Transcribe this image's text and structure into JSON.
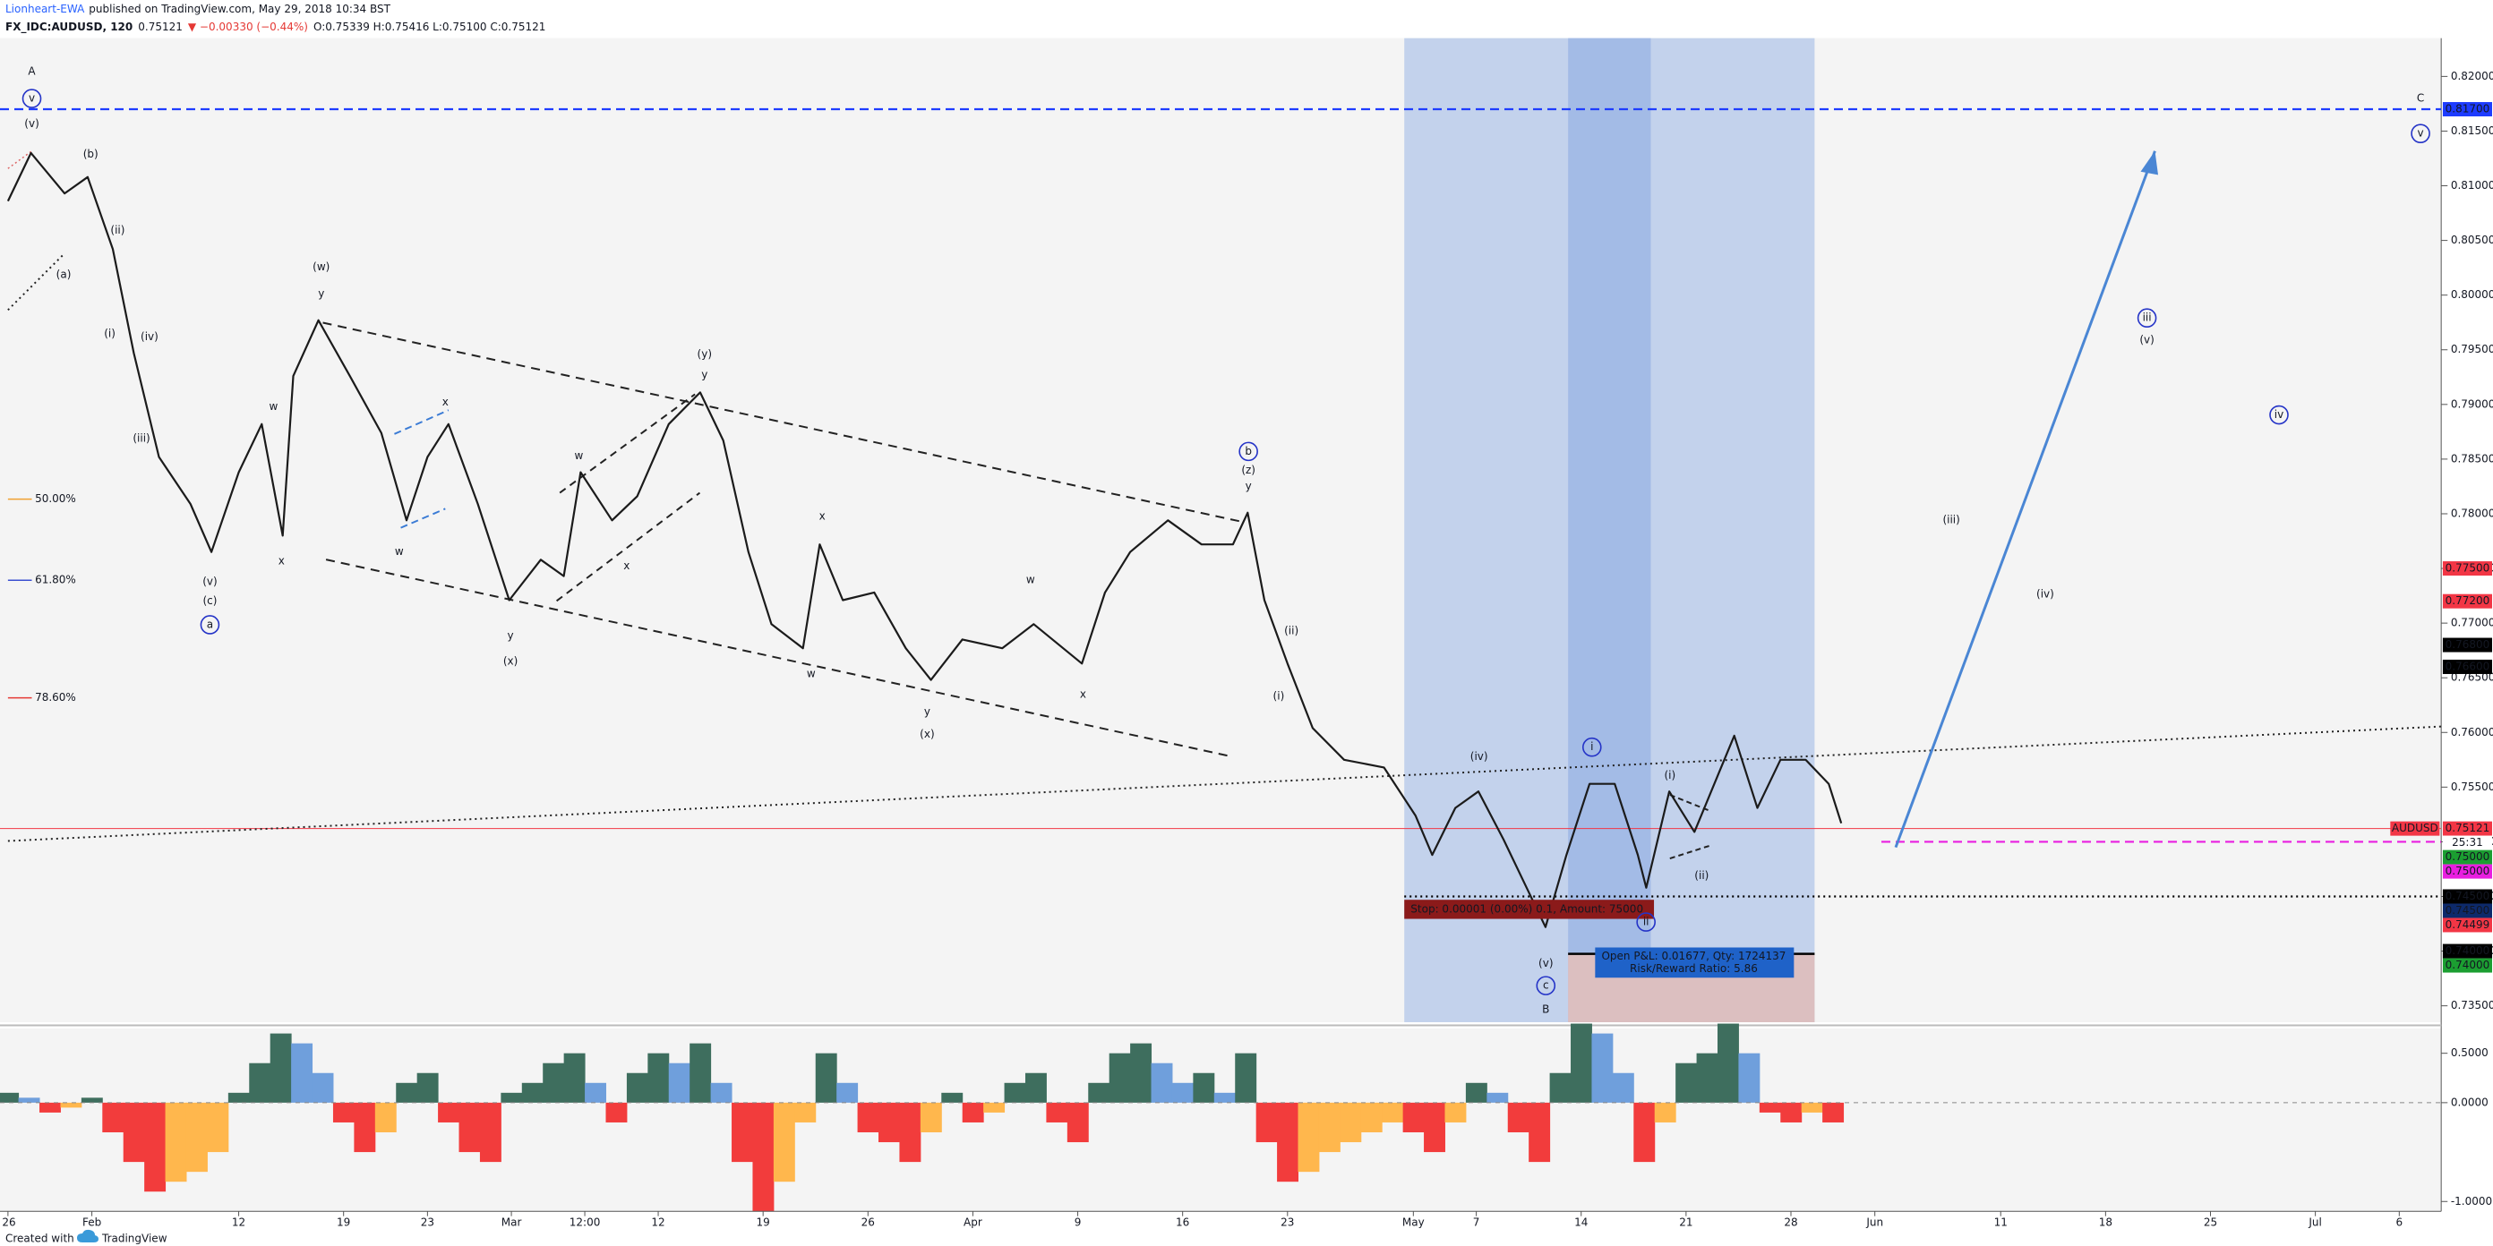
{
  "header": {
    "author": "Lionheart-EWA",
    "published": "published on TradingView.com, May 29, 2018 10:34 BST",
    "symbol": "FX_IDC:AUDUSD, 120",
    "last": "0.75121",
    "change": "▼ −0.00330 (−0.44%)",
    "ohlc": "O:0.75339 H:0.75416 L:0.75100 C:0.75121"
  },
  "footer": {
    "created": "Created with",
    "brand": "TradingView"
  },
  "chart_data": [
    {
      "type": "line",
      "name": "AUDUSD",
      "countdown": "25:31",
      "color": "#1b1b1b",
      "x": [
        0,
        1.1,
        2.7,
        3.8,
        5,
        6,
        7.2,
        8.7,
        9.7,
        11,
        12.1,
        13.1,
        13.6,
        14.8,
        16.3,
        17.8,
        19,
        20,
        21,
        22.4,
        23.9,
        25.4,
        26.5,
        27.3,
        28.8,
        30,
        31.5,
        33,
        34.1,
        35.3,
        36.4,
        37.9,
        38.7,
        39.8,
        41.3,
        42.8,
        44,
        45.5,
        47.4,
        48.9,
        51.2,
        52.3,
        53.5,
        55.3,
        56.9,
        58.4,
        59.1,
        59.9,
        61,
        62.2,
        63.7,
        65.6,
        67.1,
        67.9,
        69,
        70.1,
        71.3,
        72.4,
        73.3,
        74.3,
        75.4,
        76.6,
        77.7,
        78.1,
        79.2,
        80.4,
        81.5,
        82.3,
        83.4,
        84.5,
        85.7,
        86.8,
        87.4
      ],
      "values": [
        0.8086,
        0.813,
        0.8093,
        0.8108,
        0.8042,
        0.7947,
        0.7852,
        0.7809,
        0.7765,
        0.7838,
        0.7882,
        0.778,
        0.7926,
        0.7977,
        0.7926,
        0.7874,
        0.7794,
        0.7852,
        0.7882,
        0.7809,
        0.7721,
        0.7758,
        0.7743,
        0.7838,
        0.7794,
        0.7816,
        0.7882,
        0.7911,
        0.7867,
        0.7765,
        0.7699,
        0.7677,
        0.7772,
        0.7721,
        0.7728,
        0.7677,
        0.7648,
        0.7685,
        0.7677,
        0.7699,
        0.7663,
        0.7728,
        0.7765,
        0.7794,
        0.7772,
        0.7772,
        0.7801,
        0.7721,
        0.7663,
        0.7604,
        0.7575,
        0.7568,
        0.7524,
        0.7488,
        0.7531,
        0.7546,
        0.7502,
        0.7458,
        0.7422,
        0.7488,
        0.7553,
        0.7553,
        0.7488,
        0.7458,
        0.7546,
        0.7509,
        0.756,
        0.7597,
        0.7531,
        0.7575,
        0.7575,
        0.7553,
        0.7517
      ],
      "xlim": [
        0,
        116
      ],
      "xticks": [
        {
          "value": 0,
          "label": "26"
        },
        {
          "value": 4,
          "label": "Feb"
        },
        {
          "value": 11,
          "label": "12"
        },
        {
          "value": 16,
          "label": "19"
        },
        {
          "value": 20,
          "label": "23"
        },
        {
          "value": 24,
          "label": "Mar"
        },
        {
          "value": 27.5,
          "label": "12:00"
        },
        {
          "value": 31,
          "label": "12"
        },
        {
          "value": 36,
          "label": "19"
        },
        {
          "value": 41,
          "label": "26"
        },
        {
          "value": 46,
          "label": "Apr"
        },
        {
          "value": 51,
          "label": "9"
        },
        {
          "value": 56,
          "label": "16"
        },
        {
          "value": 61,
          "label": "23"
        },
        {
          "value": 67,
          "label": "May"
        },
        {
          "value": 70,
          "label": "7"
        },
        {
          "value": 75,
          "label": "14"
        },
        {
          "value": 80,
          "label": "21"
        },
        {
          "value": 85,
          "label": "28"
        },
        {
          "value": 89,
          "label": "Jun"
        },
        {
          "value": 95,
          "label": "11"
        },
        {
          "value": 100,
          "label": "18"
        },
        {
          "value": 105,
          "label": "25"
        },
        {
          "value": 110,
          "label": "Jul"
        },
        {
          "value": 114,
          "label": "6"
        }
      ],
      "ylim": [
        0.7335,
        0.8235
      ],
      "yticks": [
        {
          "value": 0.735,
          "label": "0.73500"
        },
        {
          "value": 0.74,
          "label": "0.74000"
        },
        {
          "value": 0.745,
          "label": "0.74500"
        },
        {
          "value": 0.75,
          "label": "0.75000"
        },
        {
          "value": 0.755,
          "label": "0.75500"
        },
        {
          "value": 0.76,
          "label": "0.76000"
        },
        {
          "value": 0.765,
          "label": "0.76500"
        },
        {
          "value": 0.77,
          "label": "0.77000"
        },
        {
          "value": 0.775,
          "label": "0.77500"
        },
        {
          "value": 0.78,
          "label": "0.78000"
        },
        {
          "value": 0.785,
          "label": "0.78500"
        },
        {
          "value": 0.79,
          "label": "0.79000"
        },
        {
          "value": 0.795,
          "label": "0.79500"
        },
        {
          "value": 0.8,
          "label": "0.80000"
        },
        {
          "value": 0.805,
          "label": "0.80500"
        },
        {
          "value": 0.81,
          "label": "0.81000"
        },
        {
          "value": 0.815,
          "label": "0.81500"
        },
        {
          "value": 0.82,
          "label": "0.82000"
        }
      ],
      "price_tags": [
        {
          "value": 0.817,
          "label": "0.81700",
          "color": "#1e3cff",
          "line": "dashed"
        },
        {
          "value": 0.775,
          "label": "0.77500",
          "color": "#f23645"
        },
        {
          "value": 0.772,
          "label": "0.77200",
          "color": "#f23645"
        },
        {
          "value": 0.768,
          "label": "0.76800",
          "color": "#000000"
        },
        {
          "value": 0.766,
          "label": "0.76600",
          "color": "#000000"
        },
        {
          "value": 0.75121,
          "label": "0.75121",
          "color": "#f23645",
          "line": "solid"
        },
        {
          "value": 0.75,
          "label": "0.75000",
          "color": "#1b9e31"
        },
        {
          "value": 0.75,
          "label": "0.75000",
          "color": "#e91ee0",
          "line": "dashed"
        },
        {
          "value": 0.745,
          "label": "0.74500",
          "color": "#000000",
          "line": "dotted"
        },
        {
          "value": 0.745,
          "label": "0.74500",
          "color": "#0d2a6b"
        },
        {
          "value": 0.74499,
          "label": "0.74499",
          "color": "#f23645"
        },
        {
          "value": 0.74,
          "label": "0.74000",
          "color": "#000000"
        },
        {
          "value": 0.74,
          "label": "0.74000",
          "color": "#1b9e31"
        }
      ],
      "fib_labels": [
        {
          "text": "50.00%",
          "color": "#f0a030"
        },
        {
          "text": "61.80%",
          "color": "#3a4fd0"
        },
        {
          "text": "78.60%",
          "color": "#e53935"
        }
      ],
      "position": {
        "stop_label": "Stop: 0.00001 (0.00%) 0.1, Amount: 75000",
        "open_pnl": "Open P&L: 0.01677, Qty: 1724137",
        "risk_reward": "Risk/Reward Ratio: 5.86"
      },
      "annotations": [
        {
          "text": "A",
          "color": "#2e9e3a"
        },
        {
          "text": "v",
          "color": "#2433c7",
          "circled": true
        },
        {
          "text": "(v)",
          "color": "#131722"
        },
        {
          "text": "(b)",
          "color": "#b8740c"
        },
        {
          "text": "(a)",
          "color": "#b8740c"
        },
        {
          "text": "(ii)",
          "color": "#131722"
        },
        {
          "text": "(i)",
          "color": "#131722"
        },
        {
          "text": "(iv)",
          "color": "#131722"
        },
        {
          "text": "(iii)",
          "color": "#131722"
        },
        {
          "text": "(v)",
          "color": "#131722"
        },
        {
          "text": "(c)",
          "color": "#b8740c"
        },
        {
          "text": "a",
          "color": "#2433c7",
          "circled": true
        },
        {
          "text": "(w)",
          "color": "#7b1fa2"
        },
        {
          "text": "y",
          "color": "#b8740c"
        },
        {
          "text": "w",
          "color": "#b8740c"
        },
        {
          "text": "x",
          "color": "#b8740c"
        },
        {
          "text": "x",
          "color": "#b8740c"
        },
        {
          "text": "w",
          "color": "#b8740c"
        },
        {
          "text": "y",
          "color": "#b8740c"
        },
        {
          "text": "(x)",
          "color": "#7b1fa2"
        },
        {
          "text": "w",
          "color": "#b8740c"
        },
        {
          "text": "x",
          "color": "#b8740c"
        },
        {
          "text": "(y)",
          "color": "#7b1fa2"
        },
        {
          "text": "y",
          "color": "#b8740c"
        },
        {
          "text": "x",
          "color": "#b8740c"
        },
        {
          "text": "w",
          "color": "#b8740c"
        },
        {
          "text": "y",
          "color": "#b8740c"
        },
        {
          "text": "(x)",
          "color": "#7b1fa2"
        },
        {
          "text": "w",
          "color": "#b8740c"
        },
        {
          "text": "x",
          "color": "#b8740c"
        },
        {
          "text": "b",
          "color": "#2433c7",
          "circled": true
        },
        {
          "text": "(z)",
          "color": "#7b1fa2"
        },
        {
          "text": "y",
          "color": "#b8740c"
        },
        {
          "text": "(ii)",
          "color": "#131722"
        },
        {
          "text": "(i)",
          "color": "#131722"
        },
        {
          "text": "(iv)",
          "color": "#131722"
        },
        {
          "text": "i",
          "color": "#2433c7",
          "circled": true
        },
        {
          "text": "(i)",
          "color": "#131722"
        },
        {
          "text": "(ii)",
          "color": "#131722"
        },
        {
          "text": "ii",
          "color": "#2433c7",
          "circled": true
        },
        {
          "text": "(v)",
          "color": "#131722"
        },
        {
          "text": "c",
          "color": "#2433c7",
          "circled": true
        },
        {
          "text": "B",
          "color": "#2e9e3a"
        },
        {
          "text": "C",
          "color": "#2e9e3a"
        },
        {
          "text": "v",
          "color": "#2433c7",
          "circled": true
        },
        {
          "text": "iii",
          "color": "#2433c7",
          "circled": true
        },
        {
          "text": "(v)",
          "color": "#131722"
        },
        {
          "text": "iv",
          "color": "#2433c7",
          "circled": true
        },
        {
          "text": "(iii)",
          "color": "#131722"
        },
        {
          "text": "(iv)",
          "color": "#131722"
        }
      ]
    },
    {
      "type": "area",
      "x": [
        0,
        1,
        2,
        3,
        4,
        5,
        6,
        7,
        8,
        9,
        10,
        11,
        12,
        13,
        14,
        15,
        16,
        17,
        18,
        19,
        20,
        21,
        22,
        23,
        24,
        25,
        26,
        27,
        28,
        29,
        30,
        31,
        32,
        33,
        34,
        35,
        36,
        37,
        38,
        39,
        40,
        41,
        42,
        43,
        44,
        45,
        46,
        47,
        48,
        49,
        50,
        51,
        52,
        53,
        54,
        55,
        56,
        57,
        58,
        59,
        60,
        61,
        62,
        63,
        64,
        65,
        66,
        67,
        68,
        69,
        70,
        71,
        72,
        73,
        74,
        75,
        76,
        77,
        78,
        79,
        80,
        81,
        82,
        83,
        84,
        85,
        86,
        87
      ],
      "values": [
        0.1,
        0.05,
        -0.1,
        -0.05,
        0.05,
        -0.3,
        -0.6,
        -0.9,
        -0.8,
        -0.7,
        -0.5,
        0.1,
        0.4,
        0.7,
        0.6,
        0.3,
        -0.2,
        -0.5,
        -0.3,
        0.2,
        0.3,
        -0.2,
        -0.5,
        -0.6,
        0.1,
        0.2,
        0.4,
        0.5,
        0.2,
        -0.2,
        0.3,
        0.5,
        0.4,
        0.6,
        0.2,
        -0.6,
        -1.1,
        -0.8,
        -0.2,
        0.5,
        0.2,
        -0.3,
        -0.4,
        -0.6,
        -0.3,
        0.1,
        -0.2,
        -0.1,
        0.2,
        0.3,
        -0.2,
        -0.4,
        0.2,
        0.5,
        0.6,
        0.4,
        0.2,
        0.3,
        0.1,
        0.5,
        -0.4,
        -0.8,
        -0.7,
        -0.5,
        -0.4,
        -0.3,
        -0.2,
        -0.3,
        -0.5,
        -0.2,
        0.2,
        0.1,
        -0.3,
        -0.6,
        0.3,
        0.8,
        0.7,
        0.3,
        -0.6,
        -0.2,
        0.4,
        0.5,
        0.8,
        0.5,
        -0.1,
        -0.2,
        -0.1,
        -0.2
      ],
      "colors": {
        "up_rising": "#3e6e5e",
        "up_falling": "#6f9fdc",
        "down_falling": "#f23c3c",
        "down_rising": "#ffb74d"
      },
      "xlim": [
        0,
        116
      ],
      "ylim": [
        -1.1,
        0.75
      ],
      "yticks": [
        {
          "value": 0.5,
          "label": "0.5000"
        },
        {
          "value": 0,
          "label": "0.0000"
        },
        {
          "value": -1,
          "label": "-1.0000"
        }
      ]
    }
  ]
}
